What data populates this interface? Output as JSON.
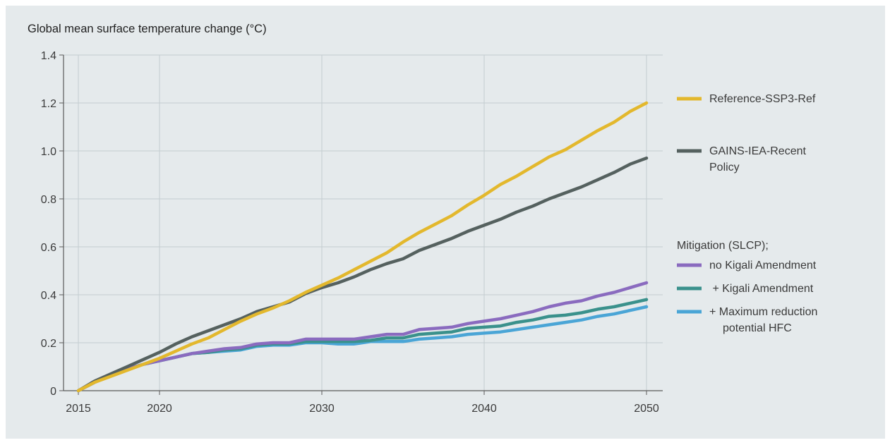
{
  "chart_data": {
    "type": "line",
    "title": "Global mean surface temperature change (°C)",
    "xlabel": "",
    "ylabel": "",
    "xlim": [
      2015,
      2050
    ],
    "ylim": [
      0,
      1.4
    ],
    "grid": true,
    "legend_position": "right",
    "x_ticks": [
      "2015",
      "2020",
      "2030",
      "2040",
      "2050"
    ],
    "y_ticks": [
      "0",
      "0.2",
      "0.4",
      "0.6",
      "0.8",
      "1.0",
      "1.2",
      "1.4"
    ],
    "x": [
      2015,
      2016,
      2017,
      2018,
      2019,
      2020,
      2021,
      2022,
      2023,
      2024,
      2025,
      2026,
      2027,
      2028,
      2029,
      2030,
      2031,
      2032,
      2033,
      2034,
      2035,
      2036,
      2037,
      2038,
      2039,
      2040,
      2041,
      2042,
      2043,
      2044,
      2045,
      2046,
      2047,
      2048,
      2049,
      2050
    ],
    "series": [
      {
        "name": "Reference-SSP3-Ref",
        "color": "#e3b82d",
        "values": [
          0.0,
          0.035,
          0.06,
          0.085,
          0.11,
          0.135,
          0.165,
          0.195,
          0.22,
          0.255,
          0.29,
          0.32,
          0.345,
          0.375,
          0.41,
          0.44,
          0.47,
          0.505,
          0.54,
          0.575,
          0.62,
          0.66,
          0.695,
          0.73,
          0.775,
          0.815,
          0.86,
          0.895,
          0.935,
          0.975,
          1.005,
          1.045,
          1.085,
          1.12,
          1.165,
          1.2
        ]
      },
      {
        "name": "GAINS-IEA-Recent Policy",
        "color": "#55615f",
        "values": [
          0.0,
          0.04,
          0.07,
          0.1,
          0.13,
          0.16,
          0.195,
          0.225,
          0.25,
          0.275,
          0.3,
          0.33,
          0.35,
          0.37,
          0.405,
          0.43,
          0.45,
          0.475,
          0.505,
          0.53,
          0.55,
          0.585,
          0.61,
          0.635,
          0.665,
          0.69,
          0.715,
          0.745,
          0.77,
          0.8,
          0.825,
          0.85,
          0.88,
          0.91,
          0.945,
          0.97
        ]
      },
      {
        "name": "no Kigali Amendment",
        "color": "#8a6bbf",
        "values": [
          0.0,
          0.035,
          0.065,
          0.09,
          0.11,
          0.125,
          0.14,
          0.155,
          0.165,
          0.175,
          0.18,
          0.195,
          0.2,
          0.2,
          0.215,
          0.215,
          0.215,
          0.215,
          0.225,
          0.235,
          0.235,
          0.255,
          0.26,
          0.265,
          0.28,
          0.29,
          0.3,
          0.315,
          0.33,
          0.35,
          0.365,
          0.375,
          0.395,
          0.41,
          0.43,
          0.45
        ]
      },
      {
        "name": " + Kigali Amendment",
        "color": "#3a918c",
        "values": [
          0.0,
          0.035,
          0.065,
          0.09,
          0.11,
          0.125,
          0.14,
          0.155,
          0.16,
          0.17,
          0.175,
          0.19,
          0.195,
          0.195,
          0.205,
          0.205,
          0.205,
          0.205,
          0.21,
          0.22,
          0.22,
          0.235,
          0.24,
          0.245,
          0.26,
          0.265,
          0.27,
          0.285,
          0.295,
          0.31,
          0.315,
          0.325,
          0.34,
          0.35,
          0.365,
          0.38
        ]
      },
      {
        "name": "+ Maximum reduction potential HFC",
        "color": "#4aa5d6",
        "values": [
          0.0,
          0.035,
          0.065,
          0.09,
          0.11,
          0.125,
          0.14,
          0.155,
          0.16,
          0.165,
          0.17,
          0.185,
          0.19,
          0.19,
          0.2,
          0.2,
          0.195,
          0.195,
          0.205,
          0.205,
          0.205,
          0.215,
          0.22,
          0.225,
          0.235,
          0.24,
          0.245,
          0.255,
          0.265,
          0.275,
          0.285,
          0.295,
          0.31,
          0.32,
          0.335,
          0.35
        ]
      }
    ]
  },
  "legend": {
    "heading": "Mitigation (SLCP);",
    "items": [
      {
        "lines": [
          "Reference-SSP3-Ref"
        ]
      },
      {
        "lines": [
          "GAINS-IEA-Recent",
          "Policy"
        ]
      },
      {
        "lines": [
          "no Kigali Amendment"
        ]
      },
      {
        "lines": [
          " + Kigali Amendment"
        ]
      },
      {
        "lines": [
          "+ Maximum reduction",
          "potential HFC"
        ]
      }
    ]
  }
}
